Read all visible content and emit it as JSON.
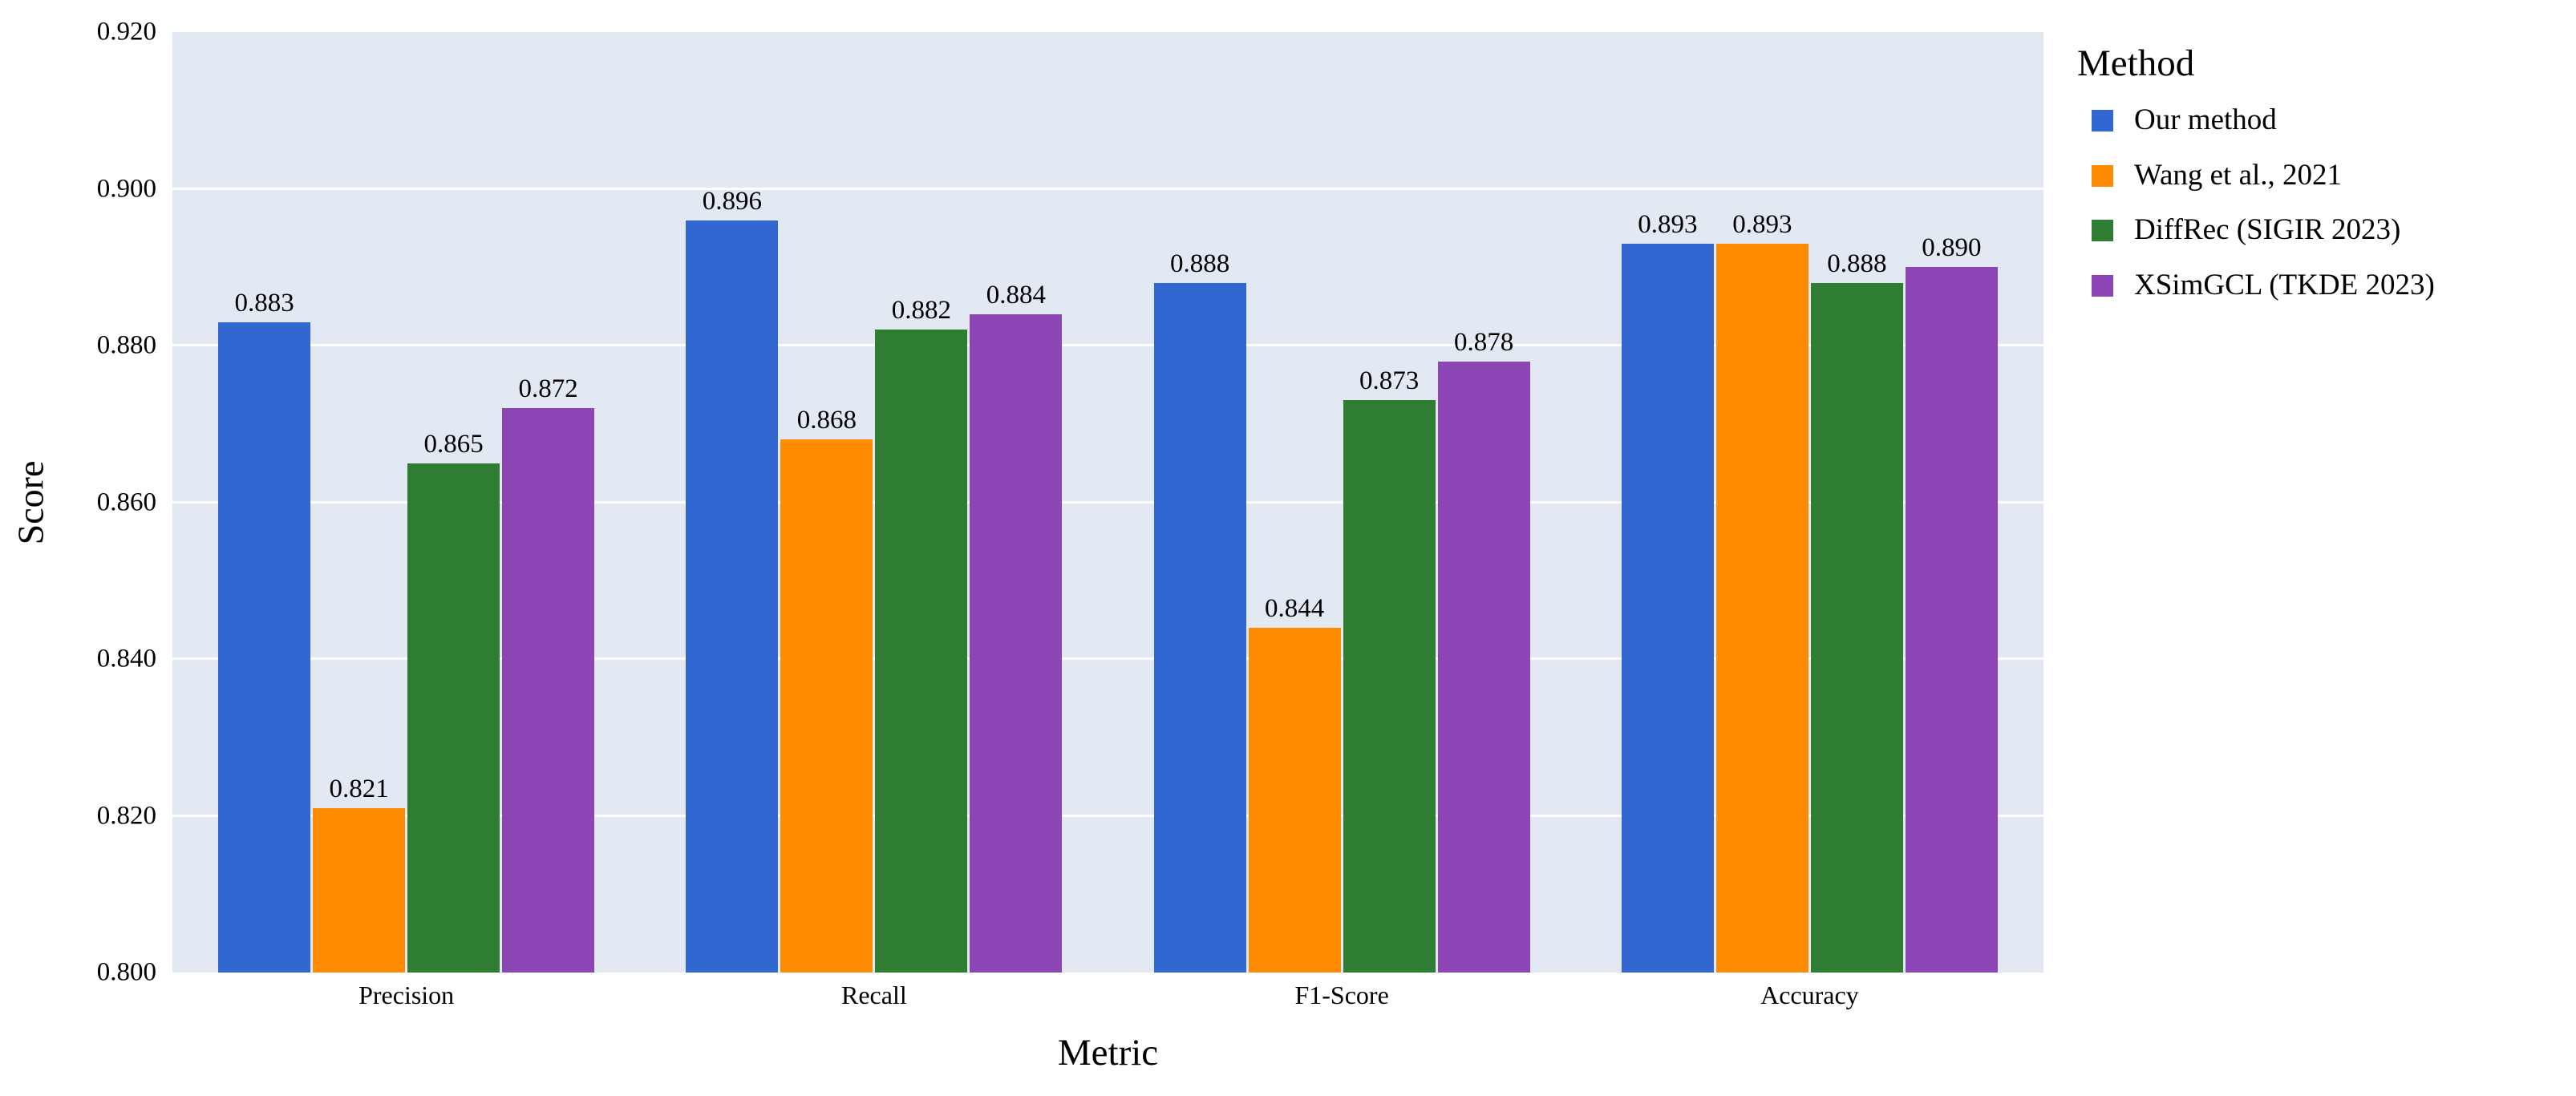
{
  "chart_data": {
    "type": "bar",
    "title": "",
    "xlabel": "Metric",
    "ylabel": "Score",
    "legend_title": "Method",
    "legend_position": "right",
    "grid": "horizontal",
    "categories": [
      "Precision",
      "Recall",
      "F1-Score",
      "Accuracy"
    ],
    "series": [
      {
        "name": "Our method",
        "color": "#3267D1",
        "values": [
          0.883,
          0.896,
          0.888,
          0.893
        ],
        "display_values": [
          "0.883",
          "0.896",
          "0.888",
          "0.893"
        ]
      },
      {
        "name": "Wang et al., 2021",
        "color": "#FF8C00",
        "values": [
          0.821,
          0.868,
          0.844,
          0.893
        ],
        "display_values": [
          "0.821",
          "0.868",
          "0.844",
          "0.893"
        ]
      },
      {
        "name": "DiffRec (SIGIR 2023)",
        "color": "#2E7D32",
        "values": [
          0.865,
          0.882,
          0.873,
          0.888
        ],
        "display_values": [
          "0.865",
          "0.882",
          "0.873",
          "0.888"
        ]
      },
      {
        "name": "XSimGCL (TKDE 2023)",
        "color": "#8B45B5",
        "values": [
          0.872,
          0.884,
          0.878,
          0.89
        ],
        "display_values": [
          "0.872",
          "0.884",
          "0.878",
          "0.890"
        ]
      }
    ],
    "ylim": [
      0.8,
      0.92
    ],
    "yticks": [
      0.92,
      0.9,
      0.88,
      0.86,
      0.84,
      0.82,
      0.8
    ],
    "ytick_labels": [
      "0.920",
      "0.900",
      "0.880",
      "0.860",
      "0.840",
      "0.820",
      "0.800"
    ],
    "colors": {
      "plot_background": "#E3E9F3",
      "gridline": "#FFFFFF",
      "text": "#000000",
      "figure_background": "#FFFFFF"
    }
  }
}
